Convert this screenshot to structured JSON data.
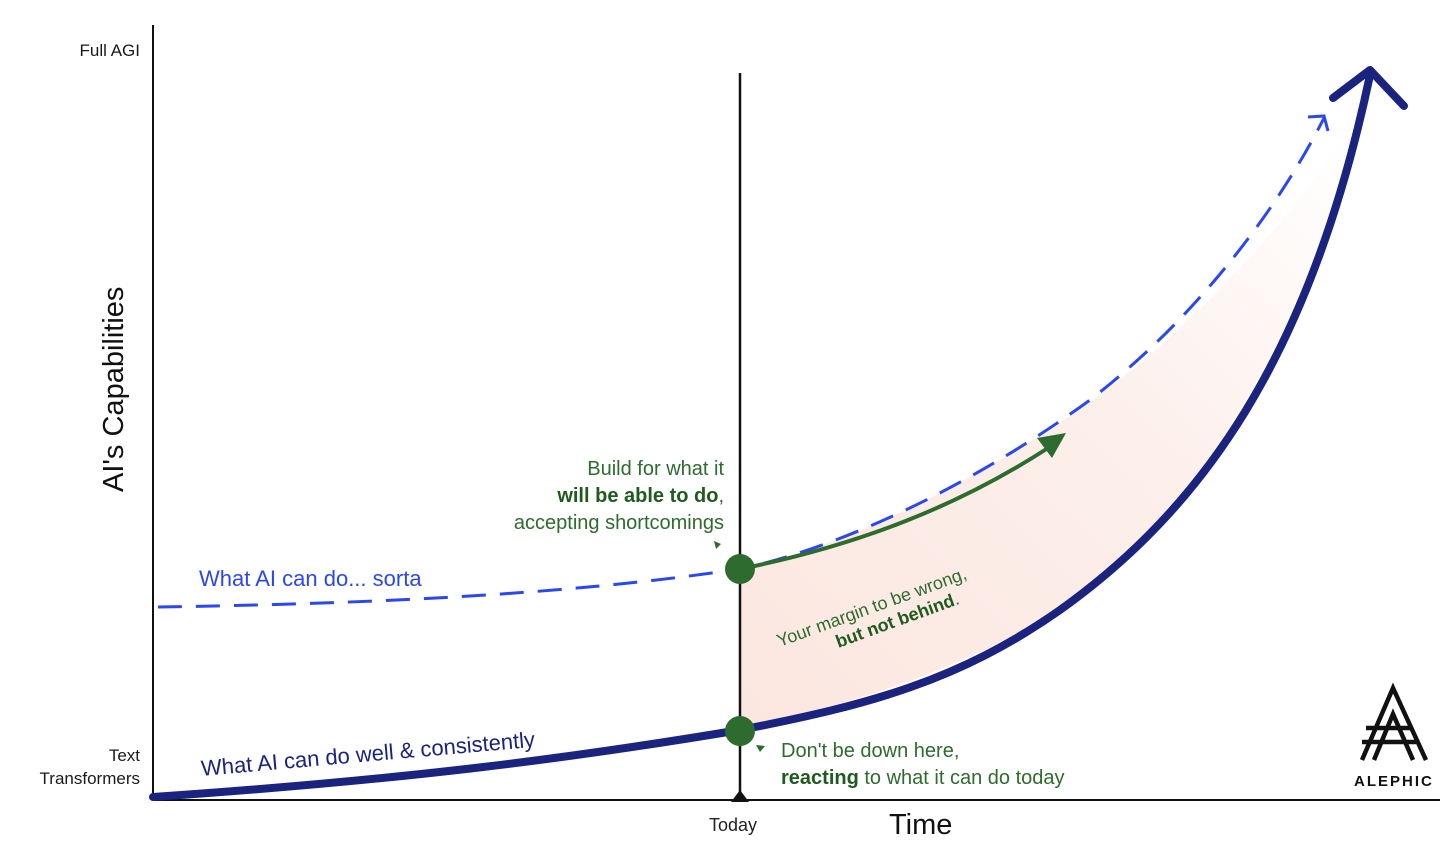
{
  "axes": {
    "y_label": "AI's Capabilities",
    "x_label": "Time",
    "y_top_tick": "Full AGI",
    "y_bottom_tick_line1": "Text",
    "y_bottom_tick_line2": "Transformers",
    "x_today_tick": "Today"
  },
  "curves": {
    "solid": {
      "label": "What AI can do well & consistently",
      "color": "#1a237e"
    },
    "dashed": {
      "label": "What AI can do... sorta",
      "color": "#2a47f0"
    },
    "green": {
      "color": "#2e6b2e"
    }
  },
  "annotations": {
    "build_line1": "Build for what it",
    "build_bold": "will be able to do",
    "build_comma": ",",
    "build_line3": "accepting shortcomings",
    "margin_line1": "Your margin to be wrong,",
    "margin_bold": "but not behind",
    "margin_period": ".",
    "down_line1": "Don't be down here,",
    "down_bold": "reacting",
    "down_rest": " to what it can do today"
  },
  "brand": {
    "logo_text": "ALEPHIC"
  }
}
